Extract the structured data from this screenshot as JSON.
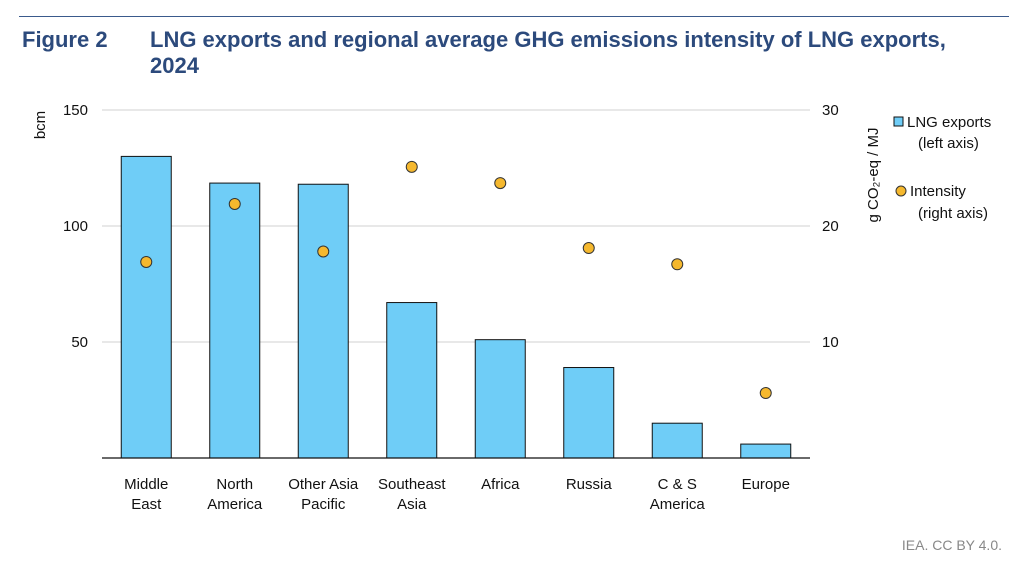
{
  "figure_label": "Figure 2",
  "title": "LNG exports and regional average GHG emissions intensity of LNG exports, 2024",
  "credit": "IEA. CC BY 4.0.",
  "chart_data": {
    "type": "bar",
    "categories": [
      [
        "Middle",
        "East"
      ],
      [
        "North",
        "America"
      ],
      [
        "Other Asia",
        "Pacific"
      ],
      [
        "Southeast",
        "Asia"
      ],
      [
        "Africa"
      ],
      [
        "Russia"
      ],
      [
        "C & S",
        "America"
      ],
      [
        "Europe"
      ]
    ],
    "series": [
      {
        "name": "LNG exports",
        "legend_sub": "(left axis)",
        "type": "bar",
        "axis": "left",
        "color": "#6fcdf7",
        "values": [
          130,
          118.5,
          118,
          67,
          51,
          39,
          15,
          6
        ]
      },
      {
        "name": "Intensity",
        "legend_sub": "(right axis)",
        "type": "scatter",
        "axis": "right",
        "color": "#f5b82e",
        "values": [
          16.9,
          21.9,
          17.8,
          25.1,
          23.7,
          18.1,
          16.7,
          5.6
        ]
      }
    ],
    "ylabel": "bcm",
    "ylabel_right": "g CO₂-eq / MJ",
    "ylim": [
      0,
      150
    ],
    "ylim_right": [
      0,
      30
    ],
    "yticks": [
      50,
      100,
      150
    ],
    "yticks_right": [
      10,
      20,
      30
    ],
    "grid": true,
    "legend_position": "right"
  }
}
